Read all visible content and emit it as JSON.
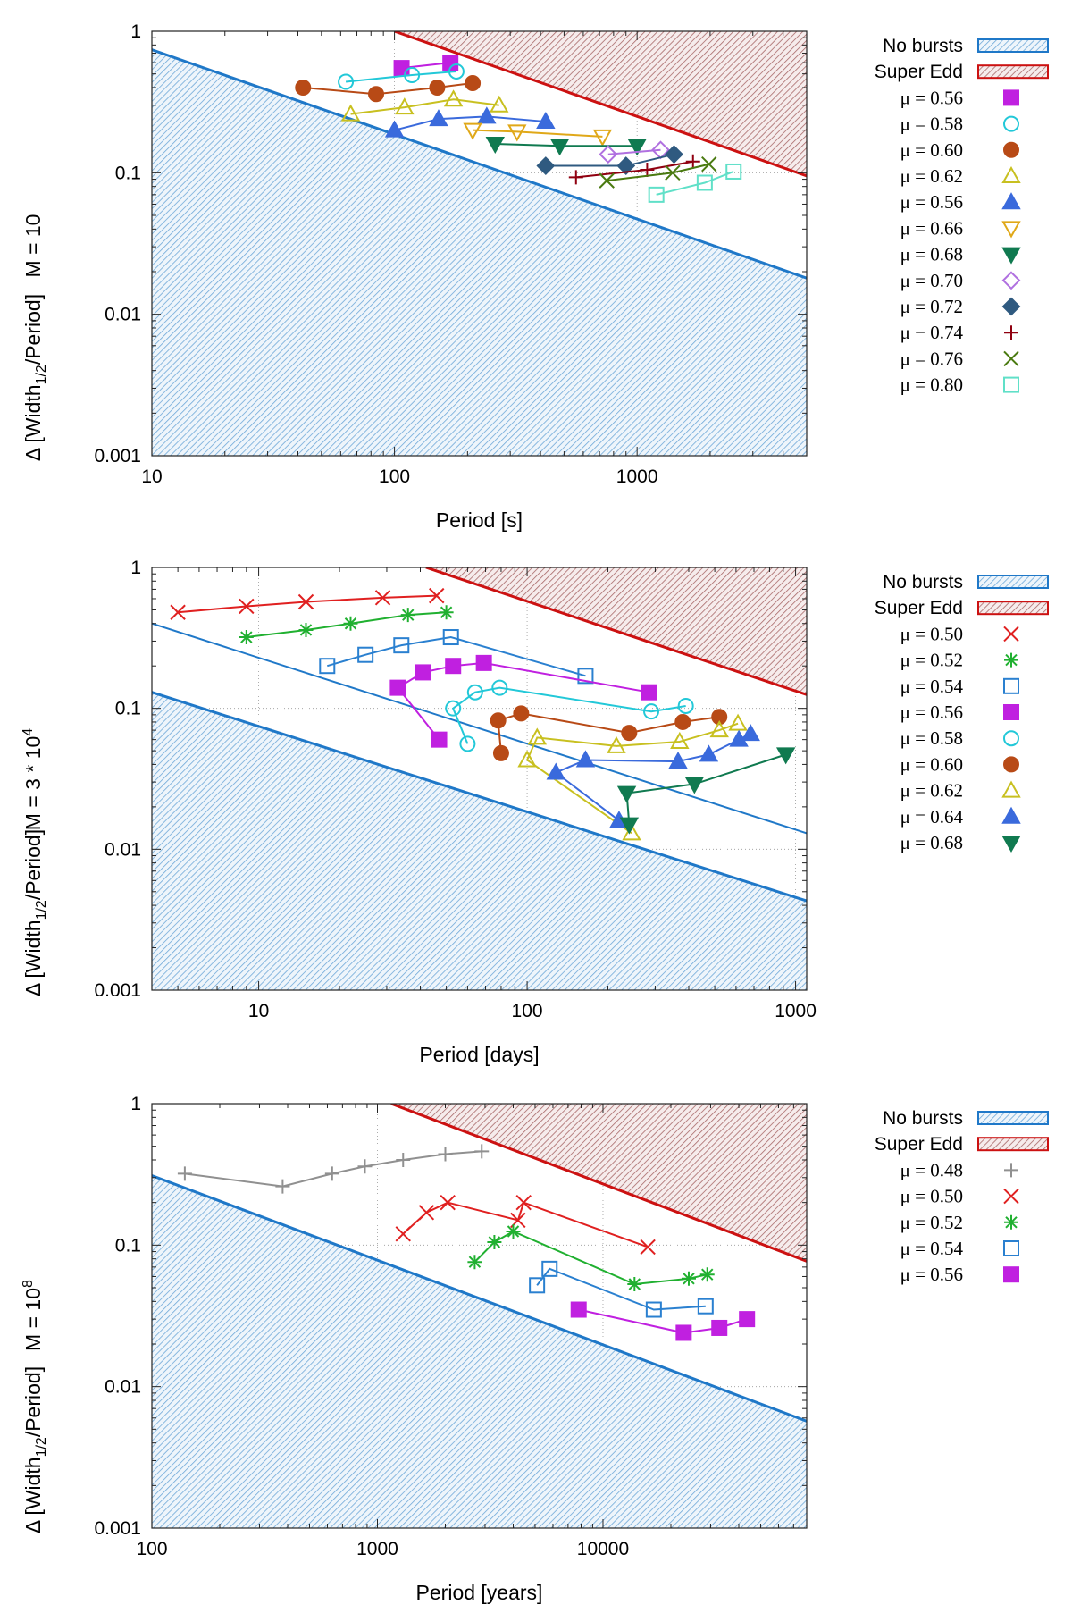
{
  "chart_data": [
    {
      "type": "line",
      "panel_label": "M = 10",
      "xlabel": "Period [s]",
      "ylabel": "Δ [Width1/2/Period]",
      "ylabel_parts": [
        "Δ [Width",
        "1/2",
        "/Period]"
      ],
      "xscale": "log",
      "yscale": "log",
      "xlim": [
        10,
        5000
      ],
      "ylim": [
        0.001,
        1
      ],
      "x_ticks": [
        {
          "value": 10,
          "label": "10"
        },
        {
          "value": 100,
          "label": "100"
        },
        {
          "value": 1000,
          "label": "1000"
        }
      ],
      "y_ticks": [
        {
          "value": 0.001,
          "label": "0.001"
        },
        {
          "value": 0.01,
          "label": "0.01"
        },
        {
          "value": 0.1,
          "label": "0.1"
        },
        {
          "value": 1,
          "label": "1"
        }
      ],
      "regions": {
        "no_bursts": {
          "label": "No bursts",
          "color": "#1f78c8",
          "line": [
            [
              10,
              0.74
            ],
            [
              5000,
              0.018
            ]
          ]
        },
        "super_edd": {
          "label": "Super Edd",
          "color": "#cc1111",
          "fill": "#a05050",
          "line": [
            [
              100,
              1.0
            ],
            [
              5000,
              0.095
            ]
          ]
        }
      },
      "series": [
        {
          "name": "μ = 0.56",
          "marker": "square",
          "filled": true,
          "color": "#c020e0",
          "points": [
            [
              107,
              0.55
            ],
            [
              170,
              0.6
            ]
          ]
        },
        {
          "name": "μ = 0.58",
          "marker": "circle",
          "filled": false,
          "color": "#22c8d8",
          "points": [
            [
              63,
              0.44
            ],
            [
              118,
              0.49
            ],
            [
              180,
              0.52
            ]
          ]
        },
        {
          "name": "μ = 0.60",
          "marker": "circle",
          "filled": true,
          "color": "#b84a16",
          "points": [
            [
              42,
              0.4
            ],
            [
              84,
              0.36
            ],
            [
              150,
              0.4
            ],
            [
              210,
              0.43
            ]
          ]
        },
        {
          "name": "μ = 0.62",
          "marker": "triangle",
          "filled": false,
          "color": "#c8c020",
          "points": [
            [
              66,
              0.26
            ],
            [
              110,
              0.29
            ],
            [
              175,
              0.33
            ],
            [
              270,
              0.3
            ]
          ]
        },
        {
          "name": "μ = 0.56",
          "marker": "triangle",
          "filled": true,
          "color": "#3a6adc",
          "points": [
            [
              100,
              0.2
            ],
            [
              152,
              0.24
            ],
            [
              240,
              0.25
            ],
            [
              420,
              0.23
            ]
          ]
        },
        {
          "name": "μ = 0.66",
          "marker": "triangle-down",
          "filled": false,
          "color": "#e0a818",
          "points": [
            [
              210,
              0.2
            ],
            [
              320,
              0.195
            ],
            [
              720,
              0.18
            ]
          ]
        },
        {
          "name": "μ = 0.68",
          "marker": "triangle-down",
          "filled": true,
          "color": "#107a50",
          "points": [
            [
              260,
              0.16
            ],
            [
              480,
              0.155
            ],
            [
              1000,
              0.155
            ]
          ]
        },
        {
          "name": "μ = 0.70",
          "marker": "diamond",
          "filled": false,
          "color": "#b070e0",
          "points": [
            [
              760,
              0.135
            ],
            [
              1250,
              0.145
            ]
          ]
        },
        {
          "name": "μ = 0.72",
          "marker": "diamond",
          "filled": true,
          "color": "#2f5a80",
          "points": [
            [
              420,
              0.112
            ],
            [
              900,
              0.112
            ],
            [
              1420,
              0.135
            ]
          ]
        },
        {
          "name": "μ − 0.74",
          "marker": "plus",
          "filled": false,
          "color": "#900010",
          "points": [
            [
              560,
              0.093
            ],
            [
              1100,
              0.105
            ],
            [
              1700,
              0.12
            ]
          ]
        },
        {
          "name": "μ = 0.76",
          "marker": "x",
          "filled": false,
          "color": "#4a7a10",
          "points": [
            [
              750,
              0.088
            ],
            [
              1400,
              0.1
            ],
            [
              1980,
              0.115
            ]
          ]
        },
        {
          "name": "μ = 0.80",
          "marker": "square",
          "filled": false,
          "color": "#60e0c8",
          "points": [
            [
              1200,
              0.07
            ],
            [
              1900,
              0.085
            ],
            [
              2500,
              0.102
            ]
          ]
        }
      ]
    },
    {
      "type": "line",
      "panel_label": "M = 3 * 10",
      "panel_label_sup": "4",
      "xlabel": "Period [days]",
      "ylabel": "Δ [Width1/2/Period]",
      "ylabel_parts": [
        "Δ [Width",
        "1/2",
        "/Period]"
      ],
      "xscale": "log",
      "yscale": "log",
      "xlim": [
        4,
        1100
      ],
      "ylim": [
        0.001,
        1
      ],
      "x_ticks": [
        {
          "value": 10,
          "label": "10"
        },
        {
          "value": 100,
          "label": "100"
        },
        {
          "value": 1000,
          "label": "1000"
        }
      ],
      "y_ticks": [
        {
          "value": 0.001,
          "label": "0.001"
        },
        {
          "value": 0.01,
          "label": "0.01"
        },
        {
          "value": 0.1,
          "label": "0.1"
        },
        {
          "value": 1,
          "label": "1"
        }
      ],
      "regions": {
        "no_bursts": {
          "label": "No bursts",
          "color": "#1f78c8",
          "line": [
            [
              4,
              0.13
            ],
            [
              1100,
              0.0043
            ]
          ],
          "upper_line": [
            [
              4,
              0.4
            ],
            [
              1100,
              0.013
            ]
          ]
        },
        "super_edd": {
          "label": "Super Edd",
          "color": "#cc1111",
          "fill": "#a05050",
          "line": [
            [
              42,
              1.0
            ],
            [
              1100,
              0.125
            ]
          ]
        }
      },
      "series": [
        {
          "name": "μ = 0.50",
          "marker": "x",
          "filled": false,
          "color": "#e02020",
          "points": [
            [
              5,
              0.48
            ],
            [
              9,
              0.53
            ],
            [
              15,
              0.57
            ],
            [
              29,
              0.61
            ],
            [
              46,
              0.63
            ]
          ]
        },
        {
          "name": "μ = 0.52",
          "marker": "star",
          "filled": false,
          "color": "#20b030",
          "points": [
            [
              9,
              0.32
            ],
            [
              15,
              0.36
            ],
            [
              22,
              0.4
            ],
            [
              36,
              0.46
            ],
            [
              50,
              0.48
            ]
          ]
        },
        {
          "name": "μ = 0.54",
          "marker": "square",
          "filled": false,
          "color": "#2a80d0",
          "points": [
            [
              18,
              0.2
            ],
            [
              25,
              0.24
            ],
            [
              34,
              0.28
            ],
            [
              52,
              0.32
            ],
            [
              165,
              0.17
            ]
          ]
        },
        {
          "name": "μ = 0.56",
          "marker": "square",
          "filled": true,
          "color": "#c020e0",
          "points": [
            [
              47,
              0.06
            ],
            [
              33,
              0.14
            ],
            [
              41,
              0.18
            ],
            [
              53,
              0.2
            ],
            [
              69,
              0.21
            ],
            [
              285,
              0.13
            ]
          ]
        },
        {
          "name": "μ = 0.58",
          "marker": "circle",
          "filled": false,
          "color": "#22c8d8",
          "points": [
            [
              60,
              0.056
            ],
            [
              53,
              0.1
            ],
            [
              64,
              0.13
            ],
            [
              79,
              0.14
            ],
            [
              290,
              0.095
            ],
            [
              390,
              0.104
            ]
          ]
        },
        {
          "name": "μ = 0.60",
          "marker": "circle",
          "filled": true,
          "color": "#b84a16",
          "points": [
            [
              80,
              0.048
            ],
            [
              78,
              0.082
            ],
            [
              95,
              0.092
            ],
            [
              240,
              0.067
            ],
            [
              380,
              0.08
            ],
            [
              520,
              0.087
            ]
          ]
        },
        {
          "name": "μ = 0.62",
          "marker": "triangle",
          "filled": false,
          "color": "#c8c020",
          "points": [
            [
              245,
              0.013
            ],
            [
              100,
              0.043
            ],
            [
              109,
              0.062
            ],
            [
              215,
              0.054
            ],
            [
              370,
              0.058
            ],
            [
              520,
              0.07
            ],
            [
              610,
              0.078
            ]
          ]
        },
        {
          "name": "μ = 0.64",
          "marker": "triangle",
          "filled": true,
          "color": "#3a6adc",
          "points": [
            [
              220,
              0.016
            ],
            [
              128,
              0.035
            ],
            [
              165,
              0.043
            ],
            [
              365,
              0.042
            ],
            [
              475,
              0.047
            ],
            [
              615,
              0.06
            ],
            [
              680,
              0.066
            ]
          ]
        },
        {
          "name": "μ = 0.68",
          "marker": "triangle-down",
          "filled": true,
          "color": "#107a50",
          "points": [
            [
              240,
              0.015
            ],
            [
              235,
              0.025
            ],
            [
              420,
              0.029
            ],
            [
              920,
              0.047
            ]
          ]
        }
      ]
    },
    {
      "type": "line",
      "panel_label": "M = 10",
      "panel_label_sup": "8",
      "xlabel": "Period [years]",
      "ylabel": "Δ [Width1/2/Period]",
      "ylabel_parts": [
        "Δ [Width",
        "1/2",
        "/Period]"
      ],
      "xscale": "log",
      "yscale": "log",
      "xlim": [
        100,
        80000
      ],
      "ylim": [
        0.001,
        1
      ],
      "x_ticks": [
        {
          "value": 100,
          "label": "100"
        },
        {
          "value": 1000,
          "label": "1000"
        },
        {
          "value": 10000,
          "label": "10000"
        }
      ],
      "y_ticks": [
        {
          "value": 0.001,
          "label": "0.001"
        },
        {
          "value": 0.01,
          "label": "0.01"
        },
        {
          "value": 0.1,
          "label": "0.1"
        },
        {
          "value": 1,
          "label": "1"
        }
      ],
      "regions": {
        "no_bursts": {
          "label": "No bursts",
          "color": "#1f78c8",
          "line": [
            [
              100,
              0.31
            ],
            [
              80000,
              0.0057
            ]
          ]
        },
        "super_edd": {
          "label": "Super Edd",
          "color": "#cc1111",
          "fill": "#a05050",
          "line": [
            [
              1150,
              1.0
            ],
            [
              80000,
              0.077
            ]
          ]
        }
      },
      "series": [
        {
          "name": "μ = 0.48",
          "marker": "plus",
          "filled": false,
          "color": "#909090",
          "points": [
            [
              140,
              0.32
            ],
            [
              380,
              0.26
            ],
            [
              630,
              0.32
            ],
            [
              880,
              0.36
            ],
            [
              1300,
              0.4
            ],
            [
              2000,
              0.44
            ],
            [
              2900,
              0.46
            ]
          ]
        },
        {
          "name": "μ = 0.50",
          "marker": "x",
          "filled": false,
          "color": "#e02020",
          "points": [
            [
              1300,
              0.12
            ],
            [
              1650,
              0.17
            ],
            [
              2050,
              0.2
            ],
            [
              4200,
              0.15
            ],
            [
              4450,
              0.2
            ],
            [
              15800,
              0.097
            ]
          ]
        },
        {
          "name": "μ = 0.52",
          "marker": "star",
          "filled": false,
          "color": "#20b030",
          "points": [
            [
              2700,
              0.076
            ],
            [
              3300,
              0.105
            ],
            [
              4000,
              0.125
            ],
            [
              13800,
              0.053
            ],
            [
              24000,
              0.058
            ],
            [
              29000,
              0.062
            ]
          ]
        },
        {
          "name": "μ = 0.54",
          "marker": "square",
          "filled": false,
          "color": "#2a80d0",
          "points": [
            [
              5100,
              0.052
            ],
            [
              5800,
              0.068
            ],
            [
              16800,
              0.035
            ],
            [
              28500,
              0.037
            ]
          ]
        },
        {
          "name": "μ = 0.56",
          "marker": "square",
          "filled": true,
          "color": "#c020e0",
          "points": [
            [
              7800,
              0.035
            ],
            [
              22800,
              0.024
            ],
            [
              32800,
              0.026
            ],
            [
              43500,
              0.03
            ]
          ]
        }
      ]
    }
  ]
}
